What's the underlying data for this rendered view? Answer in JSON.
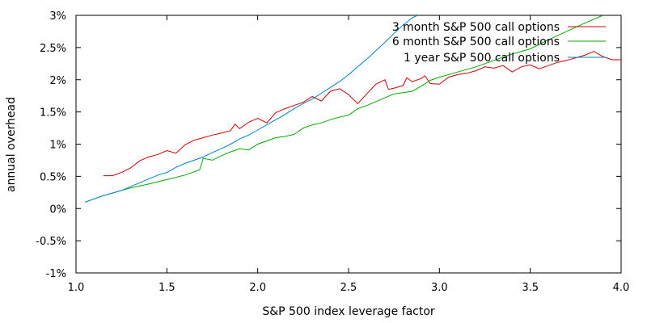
{
  "chart_data": {
    "type": "line",
    "title": "",
    "xlabel": "S&P 500 index leverage factor",
    "ylabel": "annual overhead",
    "xlim": [
      1.0,
      4.0
    ],
    "ylim": [
      -1,
      3
    ],
    "xticks": [
      1.0,
      1.5,
      2.0,
      2.5,
      3.0,
      3.5,
      4.0
    ],
    "xtick_labels": [
      "1.0",
      "1.5",
      "2.0",
      "2.5",
      "3.0",
      "3.5",
      "4.0"
    ],
    "yticks": [
      -1,
      -0.5,
      0,
      0.5,
      1,
      1.5,
      2,
      2.5,
      3
    ],
    "ytick_labels": [
      "-1%",
      "-0.5%",
      "0%",
      "0.5%",
      "1%",
      "1.5%",
      "2%",
      "2.5%",
      "3%"
    ],
    "grid": false,
    "legend_position": "top-right",
    "series": [
      {
        "name": "3 month S&P 500 call options",
        "color": "#cc0000",
        "x": [
          1.15,
          1.2,
          1.25,
          1.3,
          1.35,
          1.4,
          1.45,
          1.5,
          1.55,
          1.6,
          1.65,
          1.7,
          1.75,
          1.8,
          1.85,
          1.875,
          1.9,
          1.95,
          2.0,
          2.05,
          2.1,
          2.15,
          2.2,
          2.25,
          2.3,
          2.35,
          2.4,
          2.45,
          2.5,
          2.55,
          2.6,
          2.65,
          2.7,
          2.72,
          2.75,
          2.8,
          2.82,
          2.85,
          2.9,
          2.92,
          2.95,
          3.0,
          3.05,
          3.1,
          3.15,
          3.2,
          3.25,
          3.3,
          3.35,
          3.4,
          3.45,
          3.5,
          3.55,
          3.6,
          3.65,
          3.7,
          3.75,
          3.8,
          3.85,
          3.9,
          3.95,
          4.0
        ],
        "y": [
          0.51,
          0.51,
          0.56,
          0.63,
          0.74,
          0.8,
          0.84,
          0.9,
          0.86,
          0.99,
          1.06,
          1.1,
          1.14,
          1.17,
          1.21,
          1.31,
          1.24,
          1.34,
          1.4,
          1.33,
          1.49,
          1.55,
          1.6,
          1.65,
          1.74,
          1.67,
          1.82,
          1.86,
          1.77,
          1.63,
          1.78,
          1.93,
          2.0,
          1.85,
          1.87,
          1.91,
          2.03,
          1.97,
          2.02,
          2.06,
          1.94,
          1.93,
          2.04,
          2.08,
          2.1,
          2.14,
          2.2,
          2.18,
          2.22,
          2.12,
          2.2,
          2.23,
          2.17,
          2.22,
          2.27,
          2.3,
          2.34,
          2.38,
          2.44,
          2.36,
          2.31,
          2.31
        ]
      },
      {
        "name": "6 month S&P 500 call options",
        "color": "#00aa00",
        "x": [
          1.05,
          1.1,
          1.15,
          1.2,
          1.3,
          1.4,
          1.5,
          1.6,
          1.65,
          1.68,
          1.7,
          1.75,
          1.8,
          1.85,
          1.9,
          1.95,
          2.0,
          2.05,
          2.1,
          2.15,
          2.2,
          2.25,
          2.3,
          2.35,
          2.4,
          2.45,
          2.5,
          2.55,
          2.6,
          2.65,
          2.7,
          2.75,
          2.8,
          2.85,
          2.9,
          2.95,
          3.0,
          3.1,
          3.2,
          3.3,
          3.4,
          3.5,
          3.6,
          3.7,
          3.8,
          3.9
        ],
        "y": [
          0.1,
          0.15,
          0.2,
          0.24,
          0.32,
          0.38,
          0.45,
          0.52,
          0.57,
          0.6,
          0.78,
          0.75,
          0.82,
          0.88,
          0.93,
          0.91,
          1.0,
          1.05,
          1.1,
          1.12,
          1.15,
          1.25,
          1.3,
          1.33,
          1.38,
          1.42,
          1.45,
          1.55,
          1.6,
          1.66,
          1.72,
          1.78,
          1.8,
          1.82,
          1.9,
          1.99,
          2.04,
          2.12,
          2.2,
          2.3,
          2.4,
          2.48,
          2.62,
          2.75,
          2.88,
          3.0
        ]
      },
      {
        "name": "1 year S&P 500 call options",
        "color": "#0080cc",
        "x": [
          1.05,
          1.1,
          1.15,
          1.2,
          1.25,
          1.3,
          1.35,
          1.4,
          1.45,
          1.5,
          1.55,
          1.6,
          1.65,
          1.7,
          1.75,
          1.8,
          1.85,
          1.9,
          1.95,
          2.0,
          2.05,
          2.1,
          2.15,
          2.2,
          2.25,
          2.3,
          2.35,
          2.4,
          2.45,
          2.5,
          2.55,
          2.6,
          2.65,
          2.7,
          2.75,
          2.8,
          2.85,
          2.88
        ],
        "y": [
          0.1,
          0.15,
          0.2,
          0.24,
          0.28,
          0.34,
          0.4,
          0.46,
          0.52,
          0.56,
          0.64,
          0.7,
          0.75,
          0.8,
          0.87,
          0.93,
          1.0,
          1.08,
          1.14,
          1.22,
          1.3,
          1.38,
          1.46,
          1.55,
          1.63,
          1.7,
          1.79,
          1.88,
          1.97,
          2.08,
          2.2,
          2.32,
          2.45,
          2.58,
          2.72,
          2.85,
          2.96,
          3.0
        ]
      }
    ]
  }
}
